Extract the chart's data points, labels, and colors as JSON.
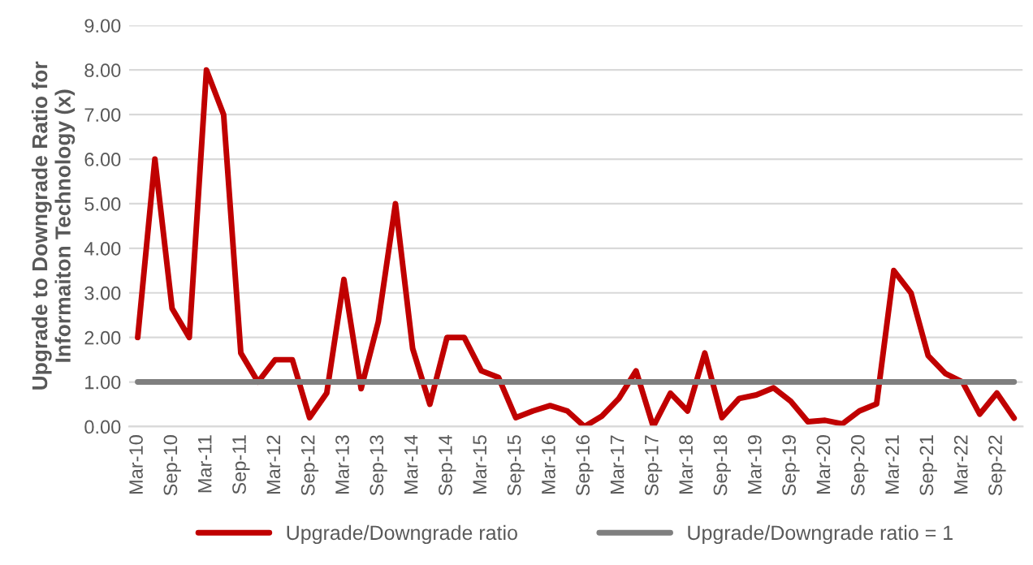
{
  "chart_data": {
    "type": "line",
    "ylabel": "Upgrade to Downgrade Ratio for Informaiton Technology (x)",
    "categories": [
      "Mar-10",
      null,
      "Sep-10",
      null,
      "Mar-11",
      null,
      "Sep-11",
      null,
      "Mar-12",
      null,
      "Sep-12",
      null,
      "Mar-13",
      null,
      "Sep-13",
      null,
      "Mar-14",
      null,
      "Sep-14",
      null,
      "Mar-15",
      null,
      "Sep-15",
      null,
      "Mar-16",
      null,
      "Sep-16",
      null,
      "Mar-17",
      null,
      "Sep-17",
      null,
      "Mar-18",
      null,
      "Sep-18",
      null,
      "Mar-19",
      null,
      "Sep-19",
      null,
      "Mar-20",
      null,
      "Sep-20",
      null,
      "Mar-21",
      null,
      "Sep-21",
      null,
      "Mar-22",
      null,
      "Sep-22",
      null
    ],
    "series": [
      {
        "name": "Upgrade/Downgrade ratio",
        "color": "#c00000",
        "values": [
          2.0,
          6.0,
          2.65,
          2.0,
          8.0,
          7.0,
          1.65,
          1.0,
          1.5,
          1.5,
          0.2,
          0.75,
          3.3,
          0.85,
          2.35,
          5.0,
          1.75,
          0.5,
          2.0,
          2.0,
          1.25,
          1.1,
          0.2,
          0.35,
          0.47,
          0.35,
          0.0,
          0.23,
          0.63,
          1.25,
          0.0,
          0.75,
          0.35,
          1.65,
          0.2,
          0.63,
          0.71,
          0.87,
          0.57,
          0.11,
          0.14,
          0.06,
          0.35,
          0.51,
          3.5,
          3.0,
          1.59,
          1.19,
          1.0,
          0.28,
          0.75,
          0.19
        ]
      },
      {
        "name": "Upgrade/Downgrade ratio = 1",
        "color": "#7f7f7f",
        "values": [
          1,
          1,
          1,
          1,
          1,
          1,
          1,
          1,
          1,
          1,
          1,
          1,
          1,
          1,
          1,
          1,
          1,
          1,
          1,
          1,
          1,
          1,
          1,
          1,
          1,
          1,
          1,
          1,
          1,
          1,
          1,
          1,
          1,
          1,
          1,
          1,
          1,
          1,
          1,
          1,
          1,
          1,
          1,
          1,
          1,
          1,
          1,
          1,
          1,
          1,
          1,
          1
        ]
      }
    ],
    "ylim": [
      0,
      9
    ],
    "yticks": [
      {
        "value": 0,
        "label": "0.00"
      },
      {
        "value": 1,
        "label": "1.00"
      },
      {
        "value": 2,
        "label": "2.00"
      },
      {
        "value": 3,
        "label": "3.00"
      },
      {
        "value": 4,
        "label": "4.00"
      },
      {
        "value": 5,
        "label": "5.00"
      },
      {
        "value": 6,
        "label": "6.00"
      },
      {
        "value": 7,
        "label": "7.00"
      },
      {
        "value": 8,
        "label": "8.00"
      },
      {
        "value": 9,
        "label": "9.00"
      }
    ],
    "grid": "y",
    "legend": "bottom",
    "marker": "none",
    "line_style": "solid"
  }
}
